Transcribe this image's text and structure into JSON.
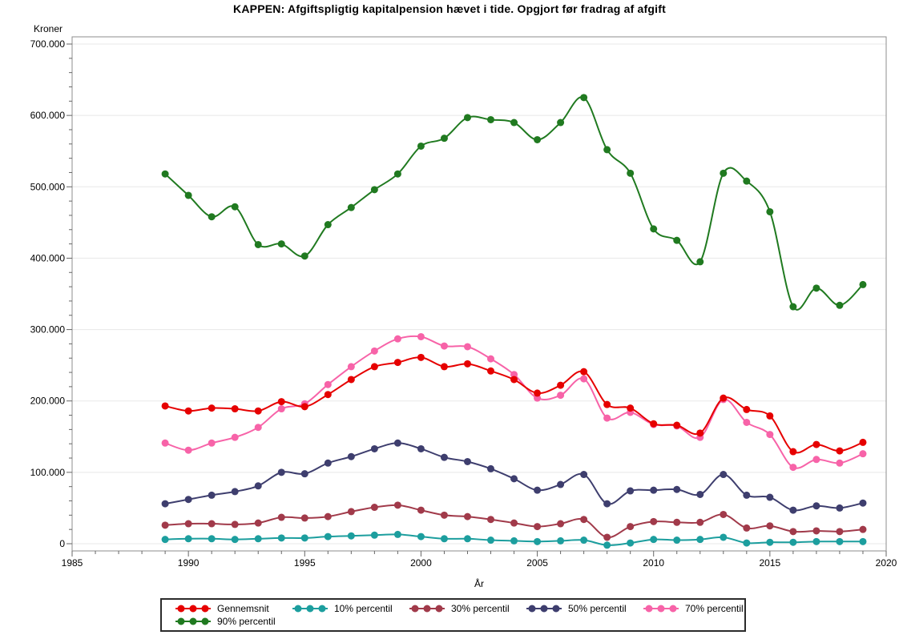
{
  "title": "KAPPEN: Afgiftspligtig kapitalpension hævet i tide. Opgjort før fradrag af afgift",
  "chart_data": {
    "type": "line",
    "title": "KAPPEN: Afgiftspligtig kapitalpension hævet i tide. Opgjort før fradrag af afgift",
    "xlabel": "År",
    "ylabel": "Kroner",
    "xlim": [
      1985,
      2020
    ],
    "ylim": [
      0,
      700000
    ],
    "x_tick_labels": [
      "1985",
      "1990",
      "1995",
      "2000",
      "2005",
      "2010",
      "2015",
      "2020"
    ],
    "x_major_interval": 5,
    "x_minor_interval": 1,
    "y_tick_labels": [
      "0",
      "100.000",
      "200.000",
      "300.000",
      "400.000",
      "500.000",
      "600.000",
      "700.000"
    ],
    "y_major_interval": 100000,
    "y_minor_interval": 20000,
    "grid": true,
    "legend_position": "bottom",
    "x": [
      1989,
      1990,
      1991,
      1992,
      1993,
      1994,
      1995,
      1996,
      1997,
      1998,
      1999,
      2000,
      2001,
      2002,
      2003,
      2004,
      2005,
      2006,
      2007,
      2008,
      2009,
      2010,
      2011,
      2012,
      2013,
      2014,
      2015,
      2016,
      2017,
      2018,
      2019
    ],
    "series": [
      {
        "name": "Gennemsnit",
        "color": "#e60000",
        "values": [
          193000,
          186000,
          190000,
          189000,
          186000,
          199000,
          192000,
          209000,
          230000,
          248000,
          254000,
          261000,
          248000,
          252000,
          242000,
          230000,
          211000,
          222000,
          241000,
          195000,
          190000,
          168000,
          166000,
          155000,
          204000,
          188000,
          179000,
          129000,
          139000,
          130000,
          142000
        ]
      },
      {
        "name": "10% percentil",
        "color": "#1c9e9e",
        "values": [
          6000,
          7000,
          7000,
          6000,
          7000,
          8000,
          8000,
          10000,
          11000,
          12000,
          13000,
          10000,
          7000,
          7000,
          5000,
          4000,
          3000,
          4000,
          5000,
          -2000,
          1000,
          6000,
          5000,
          6000,
          9000,
          1000,
          2000,
          2000,
          3000,
          3000,
          3000
        ]
      },
      {
        "name": "30% percentil",
        "color": "#a13a4a",
        "values": [
          26000,
          28000,
          28000,
          27000,
          29000,
          37000,
          36000,
          38000,
          45000,
          51000,
          54000,
          47000,
          40000,
          38000,
          34000,
          29000,
          24000,
          28000,
          34000,
          9000,
          24000,
          31000,
          30000,
          30000,
          41000,
          22000,
          25000,
          17000,
          18000,
          17000,
          20000
        ]
      },
      {
        "name": "50% percentil",
        "color": "#3e3e6e",
        "values": [
          56000,
          62000,
          68000,
          73000,
          81000,
          100000,
          98000,
          113000,
          122000,
          133000,
          141000,
          133000,
          121000,
          115000,
          105000,
          91000,
          75000,
          83000,
          97000,
          56000,
          74000,
          75000,
          76000,
          69000,
          97000,
          68000,
          65000,
          47000,
          53000,
          50000,
          57000
        ]
      },
      {
        "name": "70% percentil",
        "color": "#f763a8",
        "values": [
          141000,
          131000,
          141000,
          149000,
          163000,
          189000,
          196000,
          223000,
          248000,
          270000,
          287000,
          290000,
          277000,
          276000,
          259000,
          237000,
          204000,
          208000,
          231000,
          176000,
          184000,
          167000,
          165000,
          149000,
          202000,
          170000,
          153000,
          107000,
          118000,
          113000,
          126000
        ]
      },
      {
        "name": "90% percentil",
        "color": "#207a20",
        "values": [
          518000,
          488000,
          458000,
          472000,
          419000,
          420000,
          403000,
          447000,
          471000,
          496000,
          518000,
          557000,
          568000,
          597000,
          594000,
          590000,
          566000,
          590000,
          625000,
          552000,
          519000,
          441000,
          425000,
          395000,
          519000,
          508000,
          465000,
          332000,
          358000,
          334000,
          363000
        ]
      }
    ]
  }
}
